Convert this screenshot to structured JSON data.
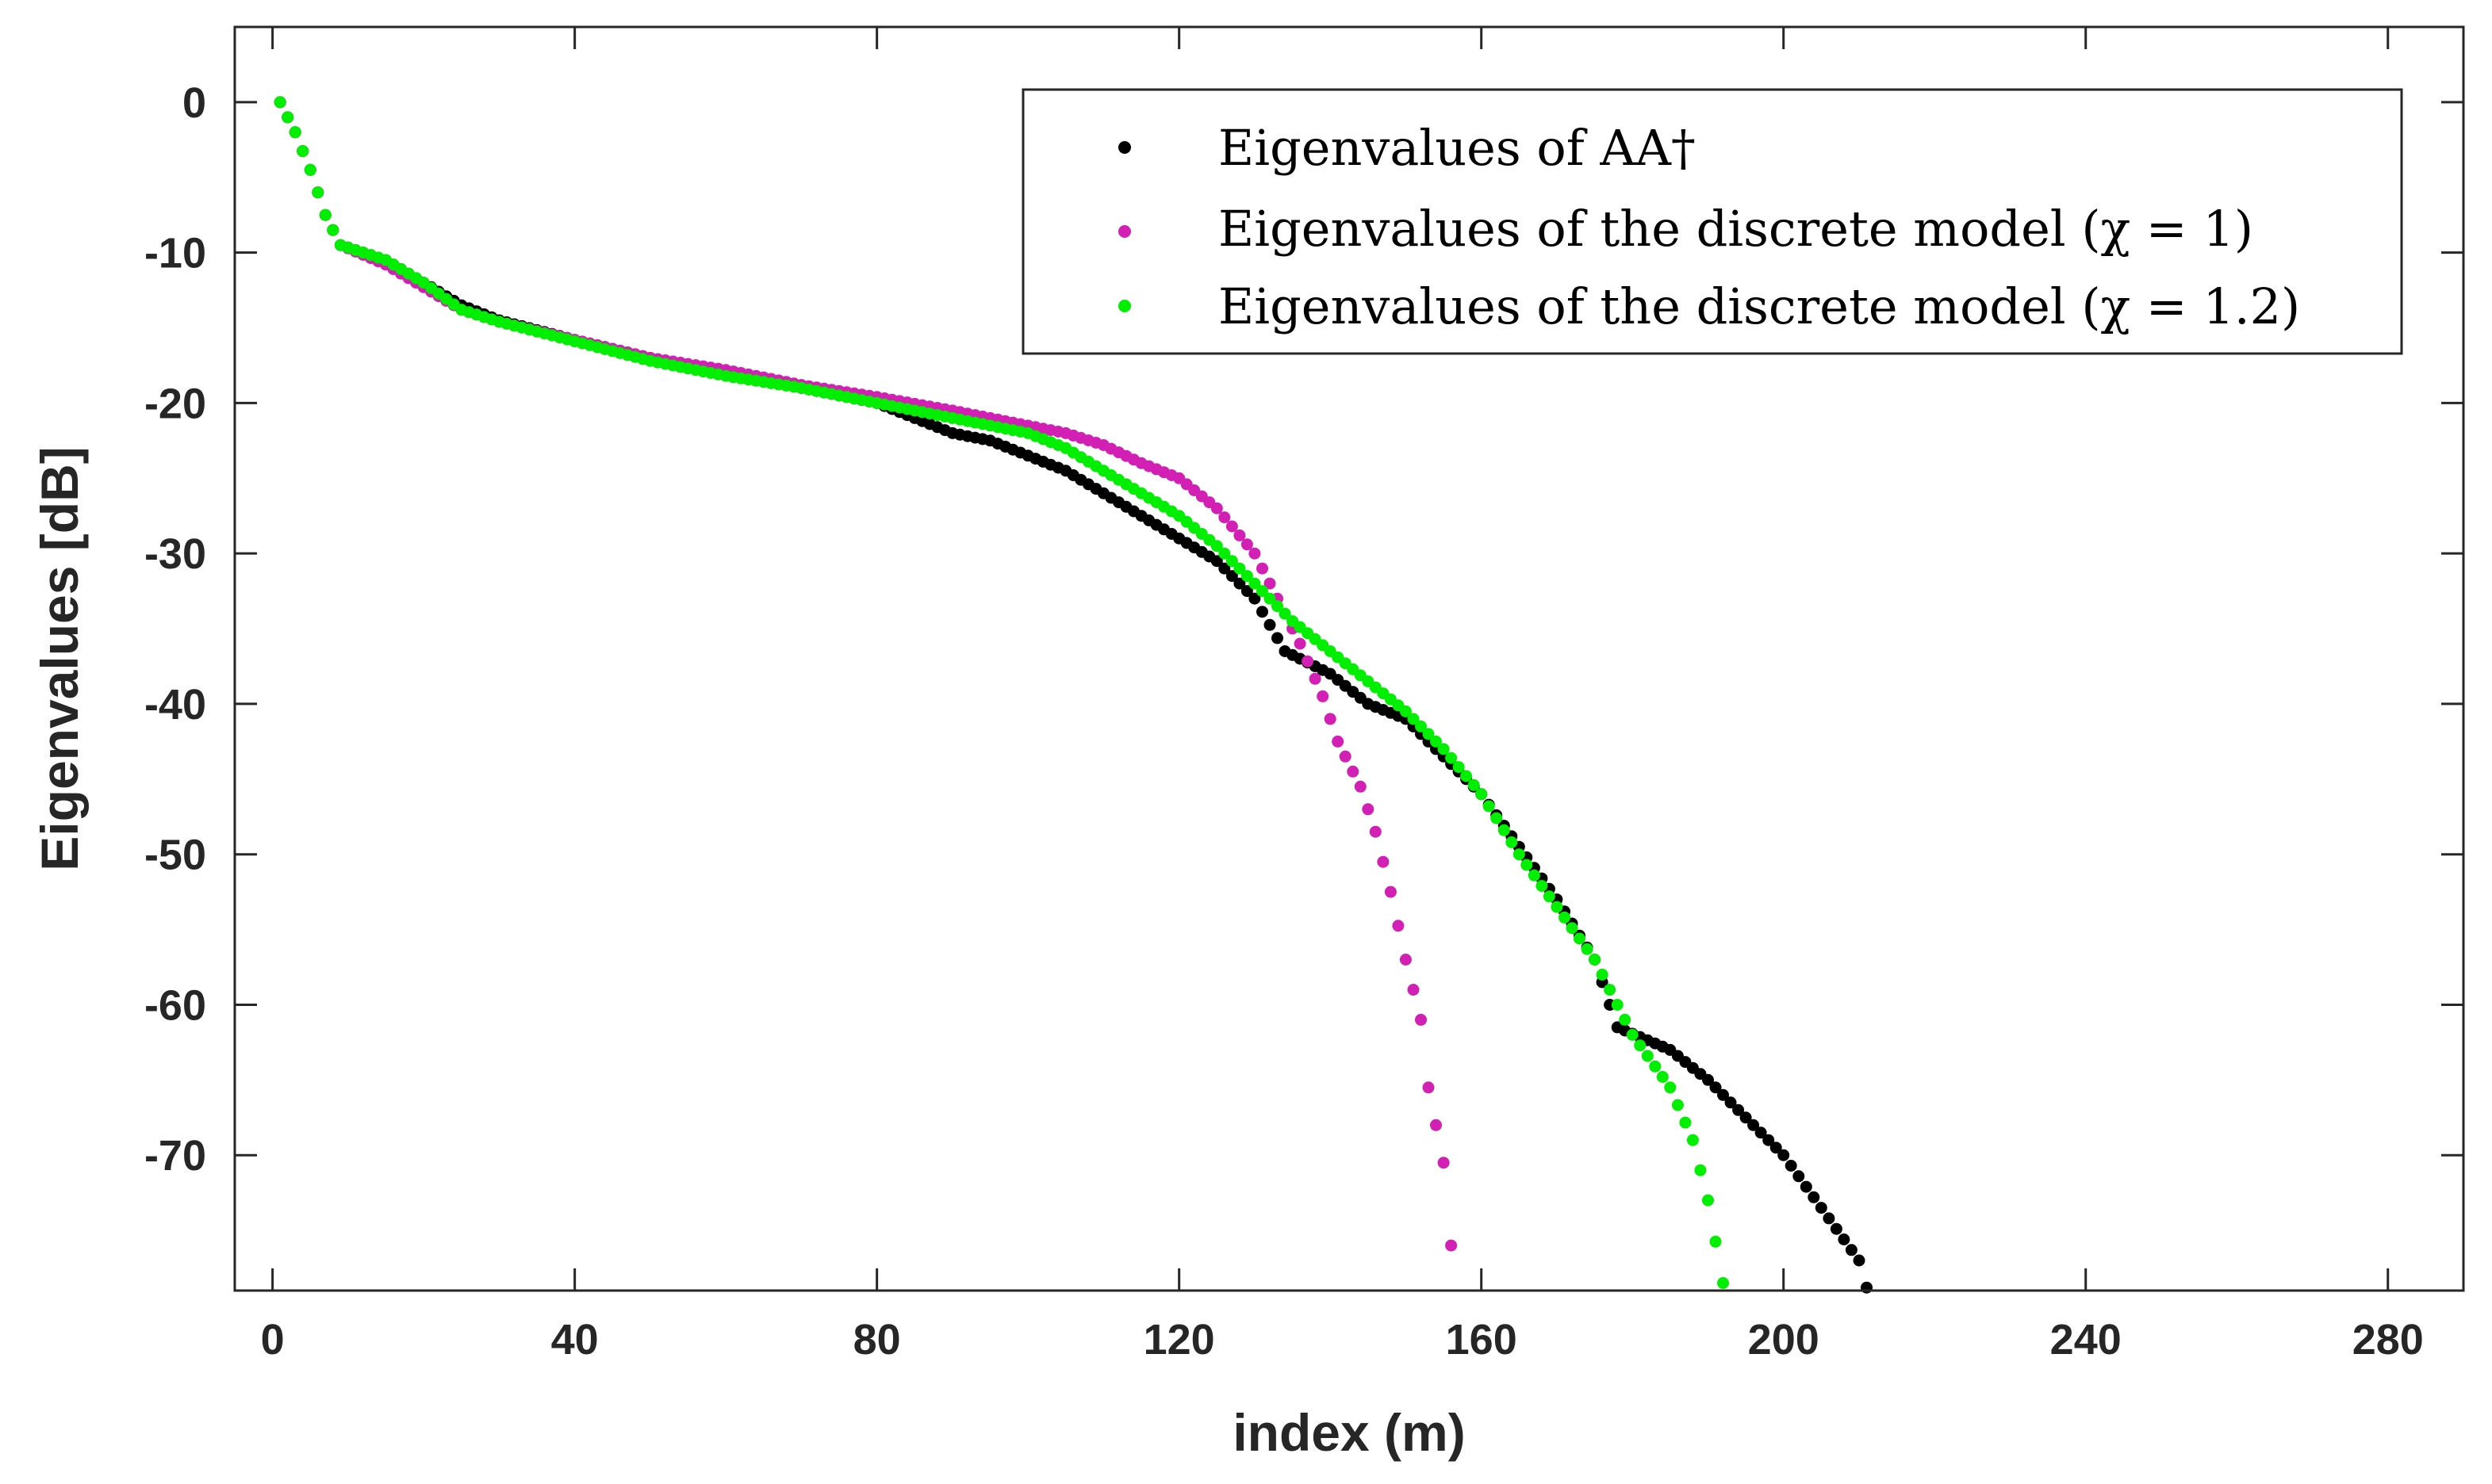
{
  "chart_data": {
    "type": "scatter",
    "title": "",
    "xlabel": "index (m)",
    "ylabel": "Eigenvalues [dB]",
    "xlim": [
      -5,
      290
    ],
    "ylim": [
      -79,
      5
    ],
    "xticks": [
      0,
      40,
      80,
      120,
      160,
      200,
      240,
      280
    ],
    "yticks": [
      0,
      -10,
      -20,
      -30,
      -40,
      -50,
      -60,
      -70
    ],
    "grid": false,
    "legend_position": "top-right",
    "series": [
      {
        "name": "Eigenvalues of AA†",
        "color": "#000000",
        "count": 211,
        "curve": [
          [
            1,
            0
          ],
          [
            3,
            -2
          ],
          [
            5,
            -4.5
          ],
          [
            7,
            -7.5
          ],
          [
            9,
            -9.5
          ],
          [
            15,
            -10.5
          ],
          [
            20,
            -12
          ],
          [
            25,
            -13.5
          ],
          [
            30,
            -14.5
          ],
          [
            40,
            -15.8
          ],
          [
            50,
            -17
          ],
          [
            60,
            -18
          ],
          [
            70,
            -19
          ],
          [
            80,
            -20
          ],
          [
            85,
            -21
          ],
          [
            90,
            -22
          ],
          [
            95,
            -22.5
          ],
          [
            100,
            -23.5
          ],
          [
            105,
            -24.5
          ],
          [
            110,
            -26
          ],
          [
            115,
            -27.5
          ],
          [
            120,
            -29
          ],
          [
            125,
            -30.5
          ],
          [
            130,
            -33
          ],
          [
            134,
            -36.5
          ],
          [
            140,
            -38
          ],
          [
            145,
            -40
          ],
          [
            150,
            -41
          ],
          [
            155,
            -43.5
          ],
          [
            160,
            -46
          ],
          [
            165,
            -49.5
          ],
          [
            170,
            -53
          ],
          [
            175,
            -57
          ],
          [
            178,
            -61.5
          ],
          [
            185,
            -63
          ],
          [
            190,
            -65
          ],
          [
            195,
            -67.5
          ],
          [
            200,
            -70
          ],
          [
            205,
            -73.5
          ],
          [
            210,
            -77
          ],
          [
            211,
            -78.8
          ]
        ]
      },
      {
        "name": "Eigenvalues of the discrete model (χ = 1)",
        "color": "#d21fb4",
        "count": 156,
        "curve": [
          [
            1,
            0
          ],
          [
            3,
            -2
          ],
          [
            5,
            -4.5
          ],
          [
            7,
            -7.5
          ],
          [
            9,
            -9.5
          ],
          [
            15,
            -10.8
          ],
          [
            20,
            -12.3
          ],
          [
            25,
            -13.8
          ],
          [
            30,
            -14.6
          ],
          [
            40,
            -15.8
          ],
          [
            50,
            -17
          ],
          [
            60,
            -17.8
          ],
          [
            70,
            -18.8
          ],
          [
            80,
            -19.6
          ],
          [
            90,
            -20.5
          ],
          [
            100,
            -21.5
          ],
          [
            105,
            -22
          ],
          [
            110,
            -22.8
          ],
          [
            115,
            -24
          ],
          [
            120,
            -25
          ],
          [
            125,
            -27
          ],
          [
            130,
            -30
          ],
          [
            133,
            -33
          ],
          [
            136,
            -36
          ],
          [
            139,
            -39.5
          ],
          [
            141,
            -42.5
          ],
          [
            144,
            -45.5
          ],
          [
            146,
            -48.5
          ],
          [
            148,
            -52.5
          ],
          [
            150,
            -57
          ],
          [
            152,
            -61
          ],
          [
            153,
            -65.5
          ],
          [
            155,
            -70.5
          ],
          [
            156,
            -76
          ]
        ]
      },
      {
        "name": "Eigenvalues of the discrete model (χ = 1.2)",
        "color": "#00ee00",
        "count": 192,
        "curve": [
          [
            1,
            0
          ],
          [
            3,
            -2
          ],
          [
            5,
            -4.5
          ],
          [
            7,
            -7.5
          ],
          [
            9,
            -9.5
          ],
          [
            15,
            -10.5
          ],
          [
            20,
            -12
          ],
          [
            25,
            -13.8
          ],
          [
            30,
            -14.6
          ],
          [
            40,
            -15.9
          ],
          [
            50,
            -17.2
          ],
          [
            60,
            -18.2
          ],
          [
            70,
            -19
          ],
          [
            80,
            -20
          ],
          [
            90,
            -21
          ],
          [
            100,
            -22
          ],
          [
            105,
            -23
          ],
          [
            110,
            -24.5
          ],
          [
            115,
            -26
          ],
          [
            120,
            -27.5
          ],
          [
            125,
            -29.5
          ],
          [
            130,
            -32
          ],
          [
            135,
            -34.5
          ],
          [
            140,
            -36.5
          ],
          [
            145,
            -38.5
          ],
          [
            150,
            -40.5
          ],
          [
            155,
            -43
          ],
          [
            160,
            -46
          ],
          [
            165,
            -50
          ],
          [
            170,
            -53.5
          ],
          [
            175,
            -57
          ],
          [
            180,
            -62
          ],
          [
            185,
            -65.5
          ],
          [
            188,
            -69
          ],
          [
            190,
            -73
          ],
          [
            192,
            -78.5
          ]
        ]
      }
    ]
  }
}
